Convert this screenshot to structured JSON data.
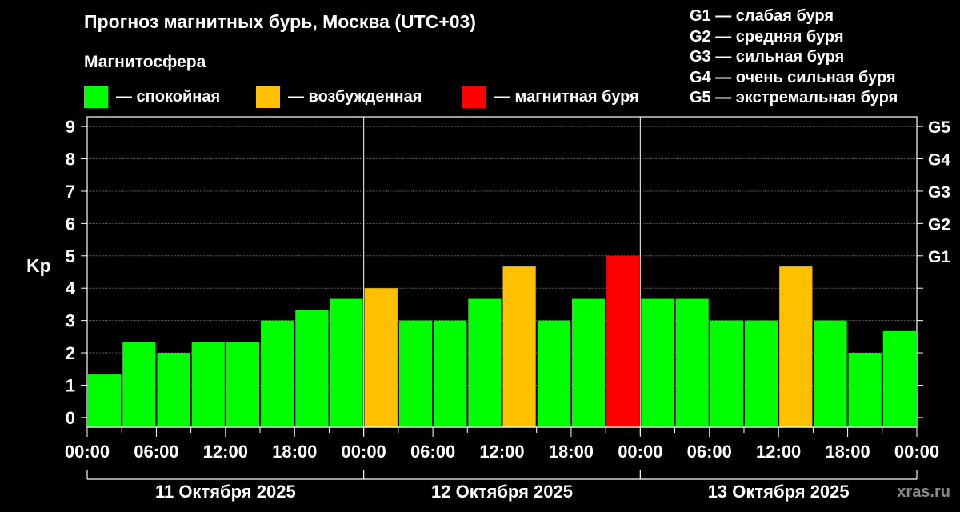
{
  "title": "Прогноз магнитных бурь, Москва (UTC+03)",
  "legend": {
    "heading": "Магнитосфера",
    "items": [
      {
        "label": "— спокойная",
        "color": "#00ff00"
      },
      {
        "label": "— возбужденная",
        "color": "#ffc000"
      },
      {
        "label": "— магнитная буря",
        "color": "#ff0000"
      }
    ]
  },
  "g_levels": [
    "G1 — слабая буря",
    "G2 — средняя буря",
    "G3 — сильная буря",
    "G4 — очень сильная буря",
    "G5 — экстремальная буря"
  ],
  "watermark": "xras.ru",
  "chart_data": {
    "type": "bar",
    "ylabel": "Kp",
    "ylim": [
      -0.3,
      9.3
    ],
    "y_ticks": [
      0,
      1,
      2,
      3,
      4,
      5,
      6,
      7,
      8,
      9
    ],
    "right_ticks": [
      {
        "value": 5,
        "label": "G1"
      },
      {
        "value": 6,
        "label": "G2"
      },
      {
        "value": 7,
        "label": "G3"
      },
      {
        "value": 8,
        "label": "G4"
      },
      {
        "value": 9,
        "label": "G5"
      }
    ],
    "x_tick_labels": [
      "00:00",
      "06:00",
      "12:00",
      "18:00",
      "00:00",
      "06:00",
      "12:00",
      "18:00",
      "00:00",
      "06:00",
      "12:00",
      "18:00",
      "00:00"
    ],
    "days": [
      "11 Октября 2025",
      "12 Октября 2025",
      "13 Октября 2025"
    ],
    "bars_per_day": 8,
    "hours_per_bar": 3,
    "colors": {
      "calm": "#00ff00",
      "active": "#ffc000",
      "storm": "#ff0000"
    },
    "values": [
      1.33,
      2.33,
      2.0,
      2.33,
      2.33,
      3.0,
      3.33,
      3.67,
      4.0,
      3.0,
      3.0,
      3.67,
      4.67,
      3.0,
      3.67,
      5.0,
      3.67,
      3.67,
      3.0,
      3.0,
      4.67,
      3.0,
      2.0,
      2.67
    ],
    "levels": [
      "calm",
      "calm",
      "calm",
      "calm",
      "calm",
      "calm",
      "calm",
      "calm",
      "active",
      "calm",
      "calm",
      "calm",
      "active",
      "calm",
      "calm",
      "storm",
      "calm",
      "calm",
      "calm",
      "calm",
      "active",
      "calm",
      "calm",
      "calm"
    ]
  }
}
